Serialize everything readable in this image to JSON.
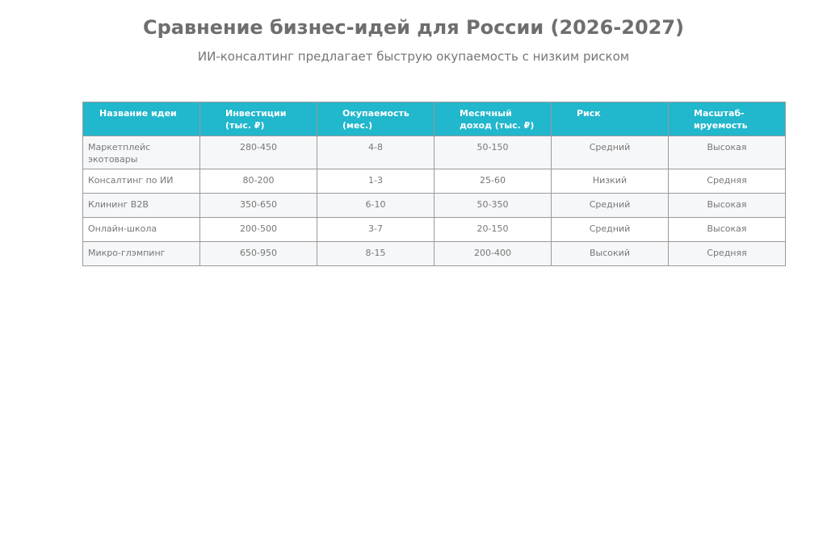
{
  "chart_data": {
    "type": "table",
    "title": "Сравнение бизнес-идей для России (2026-2027)",
    "subtitle": "ИИ-консалтинг предлагает быструю окупаемость с низким риском",
    "header_color": "#21b7cc",
    "columns": [
      "Название идеи",
      "Инвестиции (тыс. ₽)",
      "Окупаемость (мес.)",
      "Месячный доход (тыс. ₽)",
      "Риск",
      "Масштаб-ируемость"
    ],
    "rows": [
      [
        "Маркетплейс экотовары",
        "280-450",
        "4-8",
        "50-150",
        "Средний",
        "Высокая"
      ],
      [
        "Консалтинг по ИИ",
        "80-200",
        "1-3",
        "25-60",
        "Низкий",
        "Средняя"
      ],
      [
        "Клининг B2B",
        "350-650",
        "6-10",
        "50-350",
        "Средний",
        "Высокая"
      ],
      [
        "Онлайн-школа",
        "200-500",
        "3-7",
        "20-150",
        "Средний",
        "Высокая"
      ],
      [
        "Микро-глэмпинг",
        "650-950",
        "8-15",
        "200-400",
        "Высокий",
        "Средняя"
      ]
    ]
  }
}
